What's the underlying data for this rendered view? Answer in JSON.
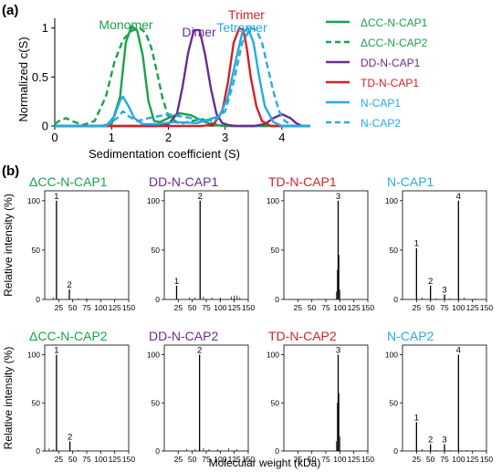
{
  "panel_a_label": "(a)",
  "panel_b_label": "(b)",
  "colors": {
    "green": "#1aa24a",
    "purple": "#6a2d91",
    "red": "#d42128",
    "cyan": "#27aae1",
    "black": "#000000"
  },
  "chart_data": [
    {
      "type": "line",
      "panel": "a",
      "xlabel": "Sedimentation coefficient (S)",
      "ylabel": "Normalized c(S)",
      "xlim": [
        0,
        4.5
      ],
      "ylim": [
        0,
        1.1
      ],
      "xticks": [
        0,
        1,
        2,
        3,
        4
      ],
      "yticks": [
        0,
        0.5,
        1
      ],
      "grid": false,
      "legend_position": "right",
      "peak_labels": [
        {
          "text": "Monomer",
          "color": "green"
        },
        {
          "text": "Dimer",
          "color": "purple"
        },
        {
          "text": "Trimer",
          "color": "red"
        },
        {
          "text": "Tetramer",
          "color": "cyan"
        }
      ],
      "series": [
        {
          "name": "ΔCC-N-CAP1",
          "color": "green",
          "dash": false,
          "x": [
            0,
            0.8,
            1.0,
            1.15,
            1.25,
            1.35,
            1.45,
            1.55,
            1.65,
            1.75,
            1.85,
            2.0,
            2.2,
            2.4,
            2.6,
            2.8,
            3.0,
            4.5
          ],
          "y": [
            0,
            0,
            0.02,
            0.3,
            0.85,
            1.02,
            0.98,
            0.72,
            0.25,
            0.05,
            0.04,
            0.08,
            0.13,
            0.11,
            0.05,
            0.01,
            0,
            0
          ]
        },
        {
          "name": "ΔCC-N-CAP2",
          "color": "green",
          "dash": true,
          "x": [
            0,
            0.1,
            0.2,
            0.3,
            0.5,
            0.7,
            0.9,
            1.05,
            1.2,
            1.35,
            1.5,
            1.6,
            1.7,
            1.8,
            1.9,
            2.0,
            2.2,
            2.4,
            2.6,
            2.8,
            3.0,
            4.5
          ],
          "y": [
            0.02,
            0.06,
            0.08,
            0.05,
            0.01,
            0.05,
            0.3,
            0.65,
            0.88,
            0.97,
            1.0,
            0.95,
            0.8,
            0.55,
            0.28,
            0.1,
            0.02,
            0.05,
            0.07,
            0.02,
            0,
            0
          ]
        },
        {
          "name": "DD-N-CAP1",
          "color": "purple",
          "dash": false,
          "x": [
            0,
            1.8,
            2.0,
            2.15,
            2.25,
            2.35,
            2.45,
            2.55,
            2.65,
            2.75,
            2.85,
            2.95,
            3.05,
            3.2,
            3.5,
            3.7,
            3.85,
            4.0,
            4.15,
            4.25,
            4.35,
            4.5
          ],
          "y": [
            0,
            0,
            0.02,
            0.12,
            0.4,
            0.75,
            0.98,
            0.98,
            0.72,
            0.38,
            0.12,
            0.03,
            0.01,
            0,
            0,
            0.02,
            0.08,
            0.12,
            0.08,
            0.03,
            0,
            0
          ]
        },
        {
          "name": "TD-N-CAP1",
          "color": "red",
          "dash": false,
          "x": [
            0,
            2.6,
            2.8,
            2.95,
            3.05,
            3.15,
            3.25,
            3.32,
            3.38,
            3.45,
            3.55,
            3.65,
            3.8,
            4.5
          ],
          "y": [
            0,
            0,
            0.02,
            0.15,
            0.45,
            0.85,
            1.0,
            0.98,
            0.8,
            0.5,
            0.2,
            0.05,
            0,
            0
          ]
        },
        {
          "name": "N-CAP1",
          "color": "cyan",
          "dash": false,
          "x": [
            0,
            0.9,
            1.05,
            1.15,
            1.2,
            1.3,
            1.4,
            1.55,
            1.8,
            2.1,
            2.5,
            2.9,
            3.05,
            3.2,
            3.3,
            3.4,
            3.5,
            3.6,
            3.7,
            3.85,
            4.0,
            4.5
          ],
          "y": [
            0,
            0,
            0.1,
            0.26,
            0.3,
            0.2,
            0.08,
            0.02,
            0.02,
            0.04,
            0.03,
            0.1,
            0.3,
            0.7,
            0.95,
            1.0,
            0.85,
            0.5,
            0.2,
            0.04,
            0,
            0
          ]
        },
        {
          "name": "N-CAP2",
          "color": "cyan",
          "dash": true,
          "x": [
            0,
            0.9,
            1.1,
            1.2,
            1.3,
            1.45,
            1.65,
            2.0,
            2.4,
            2.8,
            3.0,
            3.15,
            3.3,
            3.45,
            3.55,
            3.65,
            3.75,
            3.85,
            3.95,
            4.05,
            4.2,
            4.5
          ],
          "y": [
            0,
            0,
            0.08,
            0.15,
            0.1,
            0.05,
            0.08,
            0.12,
            0.08,
            0.05,
            0.15,
            0.45,
            0.85,
            1.0,
            0.98,
            0.85,
            0.6,
            0.35,
            0.15,
            0.05,
            0,
            0
          ]
        }
      ]
    },
    {
      "type": "bar",
      "panel": "b",
      "shared_xlabel": "Molecular weight (kDa)",
      "shared_ylabel": "Relative intensity (%)",
      "xlim": [
        0,
        150
      ],
      "ylim": [
        0,
        110
      ],
      "xticks": [
        25,
        50,
        75,
        100,
        125,
        150
      ],
      "yticks": [
        0,
        50,
        100
      ],
      "subplots": [
        {
          "title": "ΔCC-N-CAP1",
          "color": "green",
          "peaks": [
            {
              "x": 21,
              "y": 100,
              "label": "1"
            },
            {
              "x": 44,
              "y": 10,
              "label": "2"
            }
          ],
          "minor": [
            [
              15,
              2
            ],
            [
              60,
              1
            ],
            [
              75,
              1
            ]
          ]
        },
        {
          "title": "DD-N-CAP1",
          "color": "purple",
          "peaks": [
            {
              "x": 22,
              "y": 14,
              "label": "1"
            },
            {
              "x": 64,
              "y": 100,
              "label": "2"
            }
          ],
          "minor": [
            [
              45,
              2
            ],
            [
              55,
              2
            ],
            [
              70,
              3
            ],
            [
              85,
              2
            ],
            [
              100,
              2
            ],
            [
              120,
              3
            ],
            [
              125,
              4
            ],
            [
              130,
              4
            ],
            [
              135,
              2
            ]
          ]
        },
        {
          "title": "TD-N-CAP1",
          "color": "red",
          "peaks": [
            {
              "x": 97,
              "y": 100,
              "label": "3"
            },
            {
              "x": 96,
              "y": 30,
              "label": ""
            },
            {
              "x": 98,
              "y": 45,
              "label": ""
            }
          ],
          "minor": [
            [
              94,
              8
            ],
            [
              100,
              10
            ]
          ]
        },
        {
          "title": "N-CAP1",
          "color": "cyan",
          "peaks": [
            {
              "x": 25,
              "y": 52,
              "label": "1"
            },
            {
              "x": 50,
              "y": 14,
              "label": "2"
            },
            {
              "x": 75,
              "y": 5,
              "label": "3"
            },
            {
              "x": 100,
              "y": 100,
              "label": "4"
            }
          ],
          "minor": [
            [
              35,
              2
            ],
            [
              60,
              1
            ],
            [
              85,
              1
            ],
            [
              110,
              2
            ],
            [
              130,
              1
            ]
          ]
        },
        {
          "title": "ΔCC-N-CAP2",
          "color": "green",
          "peaks": [
            {
              "x": 21,
              "y": 100,
              "label": "1"
            },
            {
              "x": 45,
              "y": 10,
              "label": "2"
            }
          ],
          "minor": [
            [
              8,
              3
            ],
            [
              15,
              2
            ],
            [
              60,
              1
            ]
          ]
        },
        {
          "title": "DD-N-CAP2",
          "color": "purple",
          "peaks": [
            {
              "x": 63,
              "y": 100,
              "label": "2"
            }
          ],
          "minor": [
            [
              40,
              2
            ],
            [
              55,
              2
            ],
            [
              70,
              3
            ],
            [
              80,
              2
            ],
            [
              95,
              2
            ],
            [
              115,
              3
            ],
            [
              130,
              2
            ]
          ]
        },
        {
          "title": "TD-N-CAP2",
          "color": "red",
          "peaks": [
            {
              "x": 97,
              "y": 100,
              "label": "3"
            },
            {
              "x": 96,
              "y": 50,
              "label": ""
            },
            {
              "x": 98,
              "y": 60,
              "label": ""
            }
          ],
          "minor": [
            [
              94,
              10
            ],
            [
              100,
              15
            ]
          ]
        },
        {
          "title": "N-CAP2",
          "color": "cyan",
          "peaks": [
            {
              "x": 25,
              "y": 30,
              "label": "1"
            },
            {
              "x": 50,
              "y": 7,
              "label": "2"
            },
            {
              "x": 75,
              "y": 7,
              "label": "3"
            },
            {
              "x": 100,
              "y": 100,
              "label": "4"
            }
          ],
          "minor": [
            [
              35,
              2
            ],
            [
              60,
              1
            ],
            [
              85,
              1
            ],
            [
              115,
              1
            ]
          ]
        }
      ]
    }
  ]
}
